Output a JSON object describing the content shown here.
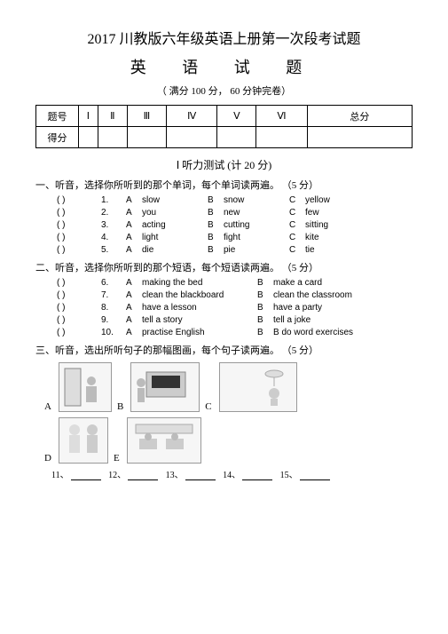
{
  "title": "2017 川教版六年级英语上册第一次段考试题",
  "subtitle": "英 语 试 题",
  "info": "（ 满分 100 分， 60 分钟完卷）",
  "scoreTable": {
    "row1": [
      "题号",
      "Ⅰ",
      "Ⅱ",
      "Ⅲ",
      "Ⅳ",
      "Ⅴ",
      "Ⅵ",
      "总分"
    ],
    "row2": [
      "得分",
      "",
      "",
      "",
      "",
      "",
      "",
      ""
    ]
  },
  "section1": "Ⅰ 听力测试 (计 20 分)",
  "part1": {
    "title": "一、听音，选择你所听到的那个单词，每个单词读两遍。 （5 分）",
    "items": [
      {
        "n": "1.",
        "a": "slow",
        "b": "snow",
        "c": "yellow"
      },
      {
        "n": "2.",
        "a": "you",
        "b": "new",
        "c": "few"
      },
      {
        "n": "3.",
        "a": "acting",
        "b": "cutting",
        "c": "sitting"
      },
      {
        "n": "4.",
        "a": "light",
        "b": "fight",
        "c": "kite"
      },
      {
        "n": "5.",
        "a": "die",
        "b": "pie",
        "c": "tie"
      }
    ]
  },
  "part2": {
    "title": "二、听音，选择你所听到的那个短语，每个短语读两遍。 （5 分）",
    "items": [
      {
        "n": "6.",
        "a": "making the bed",
        "b": "make a card"
      },
      {
        "n": "7.",
        "a": "clean the blackboard",
        "b": "clean the classroom"
      },
      {
        "n": "8.",
        "a": "have a lesson",
        "b": "have a party"
      },
      {
        "n": "9.",
        "a": "tell a story",
        "b": "tell a joke"
      },
      {
        "n": "10.",
        "a": "practise English",
        "b": "B do word exercises"
      }
    ]
  },
  "part3": {
    "title": "三、听音，选出所听句子的那幅图画，每个句子读两遍。 （5 分）",
    "labels": [
      "A",
      "B",
      "C",
      "D",
      "E"
    ],
    "blanks": [
      "11、",
      "12、",
      "13、",
      "14、",
      "15、"
    ]
  },
  "optLetters": {
    "a": "A",
    "b": "B",
    "c": "C"
  },
  "paren": "(          )"
}
